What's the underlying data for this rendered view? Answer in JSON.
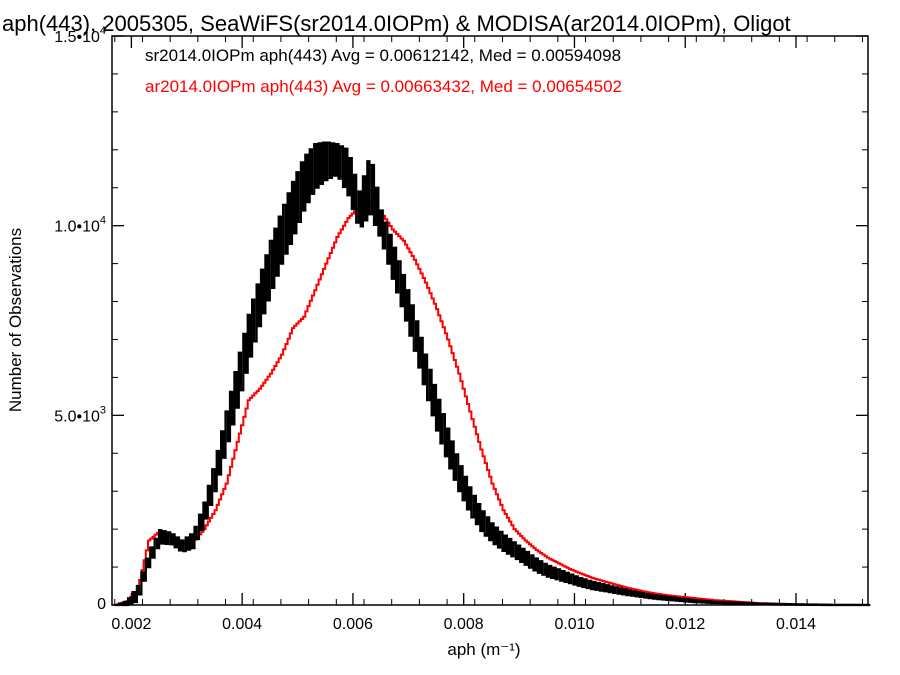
{
  "title": "aph(443), 2005305, SeaWiFS(sr2014.0IOPm) & MODISA(ar2014.0IOPm), Oligot",
  "colors": {
    "series_a": "#000000",
    "series_b": "#ff0000"
  },
  "chart_data": {
    "type": "line",
    "title": "aph(443), 2005305, SeaWiFS(sr2014.0IOPm) & MODISA(ar2014.0IOPm), Oligot",
    "xlabel": "aph (m⁻¹)",
    "ylabel": "Number of Observations",
    "xlim": [
      0.00165,
      0.0153
    ],
    "ylim": [
      0,
      15000
    ],
    "x_tick_labels": [
      "0.002",
      "0.004",
      "0.006",
      "0.008",
      "0.010",
      "0.012",
      "0.014"
    ],
    "y_tick_labels": [
      "0",
      "5.0•10³",
      "1.0•10⁴",
      "1.5•10⁴"
    ],
    "grid": false,
    "legend_placement": "top-left",
    "series": [
      {
        "name": "sr2014.0IOPm aph(443) Avg = 0.00612142, Med = 0.00594098",
        "color": "#000000",
        "style": "step-jagged",
        "x": [
          0.0017,
          0.0019,
          0.0021,
          0.0023,
          0.0025,
          0.0027,
          0.0029,
          0.0031,
          0.0033,
          0.0035,
          0.0037,
          0.0039,
          0.0041,
          0.0043,
          0.0045,
          0.0047,
          0.0049,
          0.0051,
          0.0053,
          0.0055,
          0.0057,
          0.0059,
          0.0061,
          0.0063,
          0.0065,
          0.0067,
          0.0069,
          0.0071,
          0.0073,
          0.0075,
          0.0077,
          0.0079,
          0.0081,
          0.0083,
          0.0085,
          0.0087,
          0.0089,
          0.0091,
          0.0093,
          0.0095,
          0.0097,
          0.0099,
          0.0101,
          0.0103,
          0.0105,
          0.0107,
          0.0109,
          0.0111,
          0.0113,
          0.0115,
          0.0117,
          0.0119,
          0.0121,
          0.0123,
          0.0125,
          0.0127,
          0.0129,
          0.0131,
          0.0133,
          0.0135,
          0.0137,
          0.0139,
          0.0141,
          0.0143,
          0.0145,
          0.0147,
          0.0149,
          0.0151,
          0.0153
        ],
        "y": [
          0,
          50,
          300,
          1200,
          1800,
          1750,
          1550,
          1700,
          2400,
          3400,
          4600,
          5800,
          7000,
          8000,
          8900,
          9700,
          10400,
          11100,
          11550,
          11700,
          11750,
          11400,
          10400,
          11100,
          10000,
          9100,
          8200,
          7200,
          6100,
          5100,
          4200,
          3400,
          2750,
          2250,
          1900,
          1650,
          1450,
          1250,
          1050,
          900,
          800,
          700,
          600,
          520,
          460,
          400,
          340,
          290,
          240,
          200,
          170,
          140,
          110,
          90,
          70,
          60,
          50,
          40,
          30,
          25,
          20,
          15,
          10,
          8,
          5,
          3,
          2,
          1,
          0
        ],
        "amplitude": [
          0,
          100,
          400,
          400,
          350,
          300,
          300,
          400,
          600,
          800,
          1000,
          1200,
          1300,
          1300,
          1400,
          1400,
          1500,
          1400,
          1200,
          1000,
          800,
          1200,
          1000,
          1600,
          800,
          1000,
          1000,
          1000,
          1000,
          1000,
          900,
          800,
          700,
          600,
          500,
          450,
          400,
          380,
          350,
          300,
          280,
          250,
          220,
          200,
          180,
          160,
          140,
          120,
          100,
          90,
          80,
          70,
          60,
          50,
          40,
          30,
          30,
          30,
          20,
          20,
          15,
          15,
          10,
          10,
          10,
          5,
          5,
          5,
          0
        ]
      },
      {
        "name": "ar2014.0IOPm aph(443) Avg = 0.00663432, Med = 0.00654502",
        "color": "#ff0000",
        "style": "step",
        "x": [
          0.0017,
          0.0019,
          0.0021,
          0.0023,
          0.0025,
          0.0027,
          0.0029,
          0.0031,
          0.0033,
          0.0035,
          0.0037,
          0.0039,
          0.0041,
          0.0043,
          0.0045,
          0.0047,
          0.0049,
          0.0051,
          0.0053,
          0.0055,
          0.0057,
          0.0059,
          0.0061,
          0.0063,
          0.0065,
          0.0067,
          0.0069,
          0.0071,
          0.0073,
          0.0075,
          0.0077,
          0.0079,
          0.0081,
          0.0083,
          0.0085,
          0.0087,
          0.0089,
          0.0091,
          0.0093,
          0.0095,
          0.0097,
          0.0099,
          0.0101,
          0.0103,
          0.0105,
          0.0107,
          0.0109,
          0.0111,
          0.0113,
          0.0115,
          0.0117,
          0.0119,
          0.0121,
          0.0123,
          0.0125,
          0.0127,
          0.0129,
          0.0131,
          0.0133,
          0.0135,
          0.0137,
          0.0139,
          0.0141,
          0.0143,
          0.0145,
          0.0147,
          0.0149,
          0.0151,
          0.0153
        ],
        "y": [
          0,
          100,
          400,
          1700,
          1950,
          1800,
          1600,
          1650,
          2000,
          2500,
          3200,
          4300,
          5400,
          5700,
          6100,
          6600,
          7300,
          7600,
          8300,
          9000,
          9700,
          10200,
          10500,
          10600,
          10350,
          9900,
          9600,
          9100,
          8500,
          7800,
          7000,
          6100,
          5100,
          4100,
          3200,
          2500,
          2000,
          1700,
          1450,
          1250,
          1100,
          950,
          830,
          720,
          630,
          550,
          470,
          400,
          340,
          290,
          250,
          220,
          190,
          160,
          130,
          110,
          90,
          70,
          50,
          40,
          30,
          20,
          15,
          10,
          5,
          3,
          2,
          1,
          0
        ]
      }
    ]
  }
}
